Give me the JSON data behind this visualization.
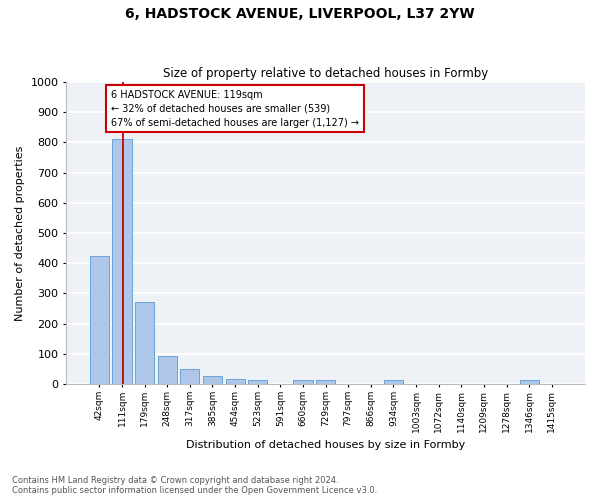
{
  "title_line1": "6, HADSTOCK AVENUE, LIVERPOOL, L37 2YW",
  "title_line2": "Size of property relative to detached houses in Formby",
  "xlabel": "Distribution of detached houses by size in Formby",
  "ylabel": "Number of detached properties",
  "categories": [
    "42sqm",
    "111sqm",
    "179sqm",
    "248sqm",
    "317sqm",
    "385sqm",
    "454sqm",
    "523sqm",
    "591sqm",
    "660sqm",
    "729sqm",
    "797sqm",
    "866sqm",
    "934sqm",
    "1003sqm",
    "1072sqm",
    "1140sqm",
    "1209sqm",
    "1278sqm",
    "1346sqm",
    "1415sqm"
  ],
  "values": [
    425,
    812,
    270,
    92,
    50,
    25,
    18,
    12,
    0,
    12,
    12,
    0,
    0,
    12,
    0,
    0,
    0,
    0,
    0,
    12,
    0
  ],
  "bar_color": "#aec6e8",
  "bar_edge_color": "#5b9bd5",
  "marker_color": "#cc0000",
  "marker_label_line1": "6 HADSTOCK AVENUE: 119sqm",
  "marker_label_line2": "← 32% of detached houses are smaller (539)",
  "marker_label_line3": "67% of semi-detached houses are larger (1,127) →",
  "ylim": [
    0,
    1000
  ],
  "yticks": [
    0,
    100,
    200,
    300,
    400,
    500,
    600,
    700,
    800,
    900,
    1000
  ],
  "background_color": "#eef2f7",
  "grid_color": "#ffffff",
  "footnote_line1": "Contains HM Land Registry data © Crown copyright and database right 2024.",
  "footnote_line2": "Contains public sector information licensed under the Open Government Licence v3.0."
}
